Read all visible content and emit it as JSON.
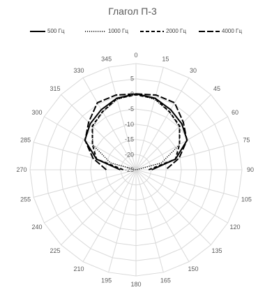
{
  "chart_data": {
    "type": "radar",
    "title": "Глагол П-3",
    "angles": [
      0,
      15,
      30,
      45,
      60,
      75,
      90,
      105,
      120,
      135,
      150,
      165,
      180,
      195,
      210,
      225,
      240,
      255,
      270,
      285,
      300,
      315,
      330,
      345
    ],
    "angle_labels": [
      "0",
      "15",
      "30",
      "45",
      "60",
      "75",
      "90",
      "105",
      "120",
      "135",
      "150",
      "165",
      "180",
      "195",
      "210",
      "225",
      "240",
      "255",
      "270",
      "285",
      "300",
      "315",
      "330",
      "345"
    ],
    "radial_ticks": [
      5,
      0,
      -5,
      -10,
      -15,
      -20,
      -25
    ],
    "radial_tick_labels": [
      "5",
      "0",
      "-5",
      "-10",
      "-15",
      "-20",
      "-25"
    ],
    "rlim": [
      -25,
      10
    ],
    "grid": true,
    "legend_position": "top",
    "series": [
      {
        "name": "500 Гц",
        "dash": "solid",
        "values": [
          0,
          -0.6,
          -2.1,
          -3.6,
          -5.5,
          -11.5,
          -19.8,
          null,
          null,
          null,
          null,
          null,
          null,
          null,
          null,
          null,
          null,
          null,
          -19.8,
          -11.5,
          -5.5,
          -3.6,
          -2.1,
          -0.6
        ]
      },
      {
        "name": "1000 Гц",
        "dash": "dotted",
        "values": [
          0,
          -1,
          -3,
          -4.8,
          -8.4,
          -16.3,
          -24.9,
          null,
          null,
          null,
          null,
          null,
          null,
          null,
          null,
          null,
          null,
          null,
          -24.9,
          -16.3,
          -8.4,
          -4.8,
          -3,
          -1
        ]
      },
      {
        "name": "2000 Гц",
        "dash": "dashed",
        "values": [
          -0.3,
          -0.7,
          -2.9,
          -4.6,
          -8.4,
          -11.5,
          -20.8,
          null,
          null,
          null,
          null,
          null,
          null,
          null,
          null,
          null,
          null,
          null,
          -20.8,
          -11.5,
          -8.4,
          -4.6,
          -2.9,
          -0.7
        ]
      },
      {
        "name": "4000 Гц",
        "dash": "long-dash",
        "values": [
          0,
          0.5,
          0.5,
          -2.9,
          -5.6,
          -10.3,
          -15.2,
          null,
          null,
          null,
          null,
          null,
          null,
          null,
          null,
          null,
          null,
          null,
          -15.2,
          -10.3,
          -5.6,
          -2.9,
          0.5,
          0.5
        ]
      }
    ]
  }
}
